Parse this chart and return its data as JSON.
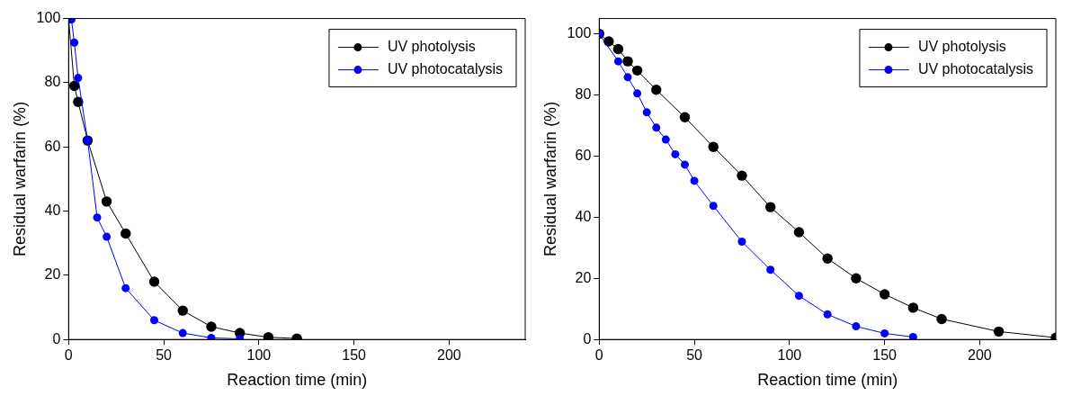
{
  "chart_data": [
    {
      "type": "line",
      "xlabel": "Reaction time (min)",
      "ylabel": "Residual warfarin (%)",
      "xlim": [
        0,
        240
      ],
      "xticks": [
        0,
        50,
        100,
        150,
        200
      ],
      "ylim": [
        0,
        100
      ],
      "yticks": [
        0,
        20,
        40,
        60,
        80,
        100
      ],
      "grid": false,
      "legend": "top right",
      "marker": "circle",
      "series": [
        {
          "name": "UV photolysis",
          "color": "#000000",
          "x": [
            0,
            3,
            5,
            10,
            20,
            30,
            45,
            60,
            75,
            90,
            105,
            120
          ],
          "values": [
            100,
            79,
            74,
            62,
            43,
            33,
            18,
            9,
            4,
            2,
            0.7,
            0.3
          ]
        },
        {
          "name": "UV photocatalysis",
          "color": "#0000ff",
          "x": [
            0,
            1.5,
            3,
            5,
            10,
            15,
            20,
            30,
            45,
            60,
            75,
            90
          ],
          "values": [
            100,
            99.7,
            92.5,
            81.5,
            62,
            38,
            32,
            16,
            6,
            2,
            0.5,
            0.2
          ]
        }
      ]
    },
    {
      "type": "line",
      "xlabel": "Reaction time (min)",
      "ylabel": "Residual warfarin (%)",
      "xlim": [
        0,
        240
      ],
      "xticks": [
        0,
        50,
        100,
        150,
        200
      ],
      "ylim": [
        0,
        105
      ],
      "yticks": [
        0,
        20,
        40,
        60,
        80,
        100
      ],
      "grid": false,
      "legend": "top right",
      "marker": "circle",
      "series": [
        {
          "name": "UV photolysis",
          "color": "#000000",
          "x": [
            0,
            5,
            10,
            15,
            20,
            30,
            45,
            60,
            75,
            90,
            105,
            120,
            135,
            150,
            165,
            180,
            210,
            240
          ],
          "values": [
            100,
            97.5,
            95,
            91,
            88,
            81.7,
            72.7,
            63,
            53.6,
            43.3,
            35.1,
            26.5,
            20,
            14.8,
            10.4,
            6.7,
            2.6,
            0.6
          ]
        },
        {
          "name": "UV photocatalysis",
          "color": "#0000ff",
          "x": [
            0,
            10,
            15,
            20,
            25,
            30,
            35,
            40,
            45,
            50,
            60,
            75,
            90,
            105,
            120,
            135,
            150,
            165
          ],
          "values": [
            100,
            91,
            85.8,
            80.5,
            74.3,
            69.3,
            65.4,
            60.6,
            57.2,
            51.9,
            43.7,
            32,
            22.8,
            14.3,
            8.2,
            4.3,
            2,
            0.8
          ]
        }
      ]
    }
  ]
}
